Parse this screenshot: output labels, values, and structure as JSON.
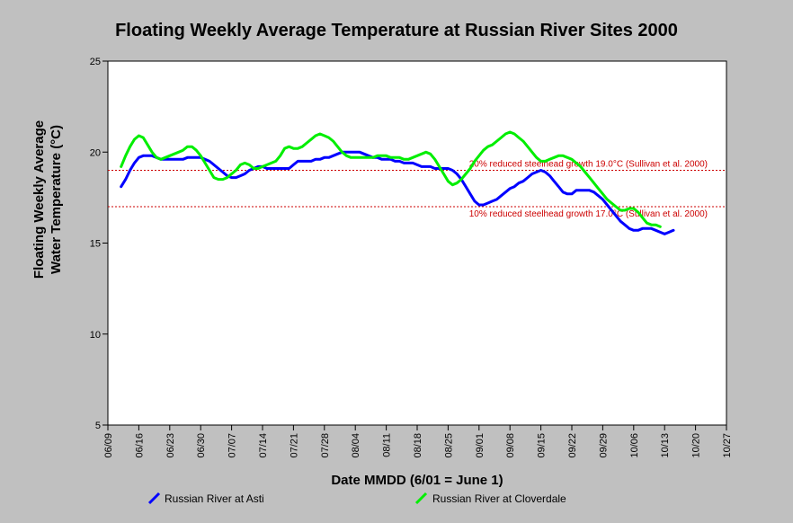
{
  "chart_data": {
    "type": "line",
    "title": "Floating Weekly Average Temperature at Russian River Sites 2000",
    "xlabel": "Date MMDD (6/01 = June 1)",
    "ylabel_lines": [
      "Floating Weekly Average",
      "Water Temperature (°C)"
    ],
    "xlim_days": [
      0,
      140
    ],
    "ylim": [
      5,
      25
    ],
    "y_ticks": [
      5,
      10,
      15,
      20,
      25
    ],
    "x_ticks": [
      {
        "day": 0,
        "label": "06/09"
      },
      {
        "day": 7,
        "label": "06/16"
      },
      {
        "day": 14,
        "label": "06/23"
      },
      {
        "day": 21,
        "label": "06/30"
      },
      {
        "day": 28,
        "label": "07/07"
      },
      {
        "day": 35,
        "label": "07/14"
      },
      {
        "day": 42,
        "label": "07/21"
      },
      {
        "day": 49,
        "label": "07/28"
      },
      {
        "day": 56,
        "label": "08/04"
      },
      {
        "day": 63,
        "label": "08/11"
      },
      {
        "day": 70,
        "label": "08/18"
      },
      {
        "day": 77,
        "label": "08/25"
      },
      {
        "day": 84,
        "label": "09/01"
      },
      {
        "day": 91,
        "label": "09/08"
      },
      {
        "day": 98,
        "label": "09/15"
      },
      {
        "day": 105,
        "label": "09/22"
      },
      {
        "day": 112,
        "label": "09/29"
      },
      {
        "day": 119,
        "label": "10/06"
      },
      {
        "day": 126,
        "label": "10/13"
      },
      {
        "day": 133,
        "label": "10/20"
      },
      {
        "day": 140,
        "label": "10/27"
      }
    ],
    "grid": false,
    "legend_position": "bottom",
    "reference_lines": [
      {
        "y": 19.0,
        "label": "20% reduced steelhead growth 19.0°C (Sullivan et al. 2000)",
        "color": "#cc0000"
      },
      {
        "y": 17.0,
        "label": "10% reduced steelhead growth 17.0°C (Sullivan et al. 2000)",
        "color": "#cc0000"
      }
    ],
    "series": [
      {
        "name": "Russian River at Asti",
        "color": "#0000ff",
        "points": [
          [
            3,
            18.1
          ],
          [
            4,
            18.5
          ],
          [
            5,
            19.0
          ],
          [
            6,
            19.4
          ],
          [
            7,
            19.7
          ],
          [
            8,
            19.8
          ],
          [
            9,
            19.8
          ],
          [
            10,
            19.8
          ],
          [
            11,
            19.7
          ],
          [
            12,
            19.6
          ],
          [
            13,
            19.6
          ],
          [
            14,
            19.6
          ],
          [
            15,
            19.6
          ],
          [
            16,
            19.6
          ],
          [
            17,
            19.6
          ],
          [
            18,
            19.7
          ],
          [
            19,
            19.7
          ],
          [
            20,
            19.7
          ],
          [
            21,
            19.7
          ],
          [
            22,
            19.6
          ],
          [
            23,
            19.5
          ],
          [
            24,
            19.3
          ],
          [
            25,
            19.1
          ],
          [
            26,
            18.9
          ],
          [
            27,
            18.7
          ],
          [
            28,
            18.6
          ],
          [
            29,
            18.6
          ],
          [
            30,
            18.7
          ],
          [
            31,
            18.8
          ],
          [
            32,
            19.0
          ],
          [
            33,
            19.1
          ],
          [
            34,
            19.2
          ],
          [
            35,
            19.2
          ],
          [
            36,
            19.1
          ],
          [
            37,
            19.1
          ],
          [
            38,
            19.1
          ],
          [
            39,
            19.1
          ],
          [
            40,
            19.1
          ],
          [
            41,
            19.1
          ],
          [
            42,
            19.3
          ],
          [
            43,
            19.5
          ],
          [
            44,
            19.5
          ],
          [
            45,
            19.5
          ],
          [
            46,
            19.5
          ],
          [
            47,
            19.6
          ],
          [
            48,
            19.6
          ],
          [
            49,
            19.7
          ],
          [
            50,
            19.7
          ],
          [
            51,
            19.8
          ],
          [
            52,
            19.9
          ],
          [
            53,
            20.0
          ],
          [
            54,
            20.0
          ],
          [
            55,
            20.0
          ],
          [
            56,
            20.0
          ],
          [
            57,
            20.0
          ],
          [
            58,
            19.9
          ],
          [
            59,
            19.8
          ],
          [
            60,
            19.7
          ],
          [
            61,
            19.7
          ],
          [
            62,
            19.6
          ],
          [
            63,
            19.6
          ],
          [
            64,
            19.6
          ],
          [
            65,
            19.5
          ],
          [
            66,
            19.5
          ],
          [
            67,
            19.4
          ],
          [
            68,
            19.4
          ],
          [
            69,
            19.4
          ],
          [
            70,
            19.3
          ],
          [
            71,
            19.2
          ],
          [
            72,
            19.2
          ],
          [
            73,
            19.2
          ],
          [
            74,
            19.1
          ],
          [
            75,
            19.1
          ],
          [
            76,
            19.1
          ],
          [
            77,
            19.1
          ],
          [
            78,
            19.0
          ],
          [
            79,
            18.8
          ],
          [
            80,
            18.5
          ],
          [
            81,
            18.1
          ],
          [
            82,
            17.7
          ],
          [
            83,
            17.3
          ],
          [
            84,
            17.1
          ],
          [
            85,
            17.1
          ],
          [
            86,
            17.2
          ],
          [
            87,
            17.3
          ],
          [
            88,
            17.4
          ],
          [
            89,
            17.6
          ],
          [
            90,
            17.8
          ],
          [
            91,
            18.0
          ],
          [
            92,
            18.1
          ],
          [
            93,
            18.3
          ],
          [
            94,
            18.4
          ],
          [
            95,
            18.6
          ],
          [
            96,
            18.8
          ],
          [
            97,
            18.9
          ],
          [
            98,
            19.0
          ],
          [
            99,
            18.9
          ],
          [
            100,
            18.7
          ],
          [
            101,
            18.4
          ],
          [
            102,
            18.1
          ],
          [
            103,
            17.8
          ],
          [
            104,
            17.7
          ],
          [
            105,
            17.7
          ],
          [
            106,
            17.9
          ],
          [
            107,
            17.9
          ],
          [
            108,
            17.9
          ],
          [
            109,
            17.9
          ],
          [
            110,
            17.8
          ],
          [
            111,
            17.6
          ],
          [
            112,
            17.4
          ],
          [
            113,
            17.1
          ],
          [
            114,
            16.8
          ],
          [
            115,
            16.5
          ],
          [
            116,
            16.2
          ],
          [
            117,
            16.0
          ],
          [
            118,
            15.8
          ],
          [
            119,
            15.7
          ],
          [
            120,
            15.7
          ],
          [
            121,
            15.8
          ],
          [
            122,
            15.8
          ],
          [
            123,
            15.8
          ],
          [
            124,
            15.7
          ],
          [
            125,
            15.6
          ],
          [
            126,
            15.5
          ],
          [
            127,
            15.6
          ],
          [
            128,
            15.7
          ]
        ]
      },
      {
        "name": "Russian River at Cloverdale",
        "color": "#00ee00",
        "points": [
          [
            3,
            19.2
          ],
          [
            4,
            19.8
          ],
          [
            5,
            20.3
          ],
          [
            6,
            20.7
          ],
          [
            7,
            20.9
          ],
          [
            8,
            20.8
          ],
          [
            9,
            20.4
          ],
          [
            10,
            20.0
          ],
          [
            11,
            19.7
          ],
          [
            12,
            19.6
          ],
          [
            13,
            19.7
          ],
          [
            14,
            19.8
          ],
          [
            15,
            19.9
          ],
          [
            16,
            20.0
          ],
          [
            17,
            20.1
          ],
          [
            18,
            20.3
          ],
          [
            19,
            20.3
          ],
          [
            20,
            20.1
          ],
          [
            21,
            19.8
          ],
          [
            22,
            19.4
          ],
          [
            23,
            19.0
          ],
          [
            24,
            18.6
          ],
          [
            25,
            18.5
          ],
          [
            26,
            18.5
          ],
          [
            27,
            18.6
          ],
          [
            28,
            18.8
          ],
          [
            29,
            19.0
          ],
          [
            30,
            19.3
          ],
          [
            31,
            19.4
          ],
          [
            32,
            19.3
          ],
          [
            33,
            19.1
          ],
          [
            34,
            19.1
          ],
          [
            35,
            19.2
          ],
          [
            36,
            19.3
          ],
          [
            37,
            19.4
          ],
          [
            38,
            19.5
          ],
          [
            39,
            19.8
          ],
          [
            40,
            20.2
          ],
          [
            41,
            20.3
          ],
          [
            42,
            20.2
          ],
          [
            43,
            20.2
          ],
          [
            44,
            20.3
          ],
          [
            45,
            20.5
          ],
          [
            46,
            20.7
          ],
          [
            47,
            20.9
          ],
          [
            48,
            21.0
          ],
          [
            49,
            20.9
          ],
          [
            50,
            20.8
          ],
          [
            51,
            20.6
          ],
          [
            52,
            20.3
          ],
          [
            53,
            20.0
          ],
          [
            54,
            19.8
          ],
          [
            55,
            19.7
          ],
          [
            56,
            19.7
          ],
          [
            57,
            19.7
          ],
          [
            58,
            19.7
          ],
          [
            59,
            19.7
          ],
          [
            60,
            19.7
          ],
          [
            61,
            19.8
          ],
          [
            62,
            19.8
          ],
          [
            63,
            19.8
          ],
          [
            64,
            19.7
          ],
          [
            65,
            19.7
          ],
          [
            66,
            19.7
          ],
          [
            67,
            19.6
          ],
          [
            68,
            19.6
          ],
          [
            69,
            19.7
          ],
          [
            70,
            19.8
          ],
          [
            71,
            19.9
          ],
          [
            72,
            20.0
          ],
          [
            73,
            19.9
          ],
          [
            74,
            19.6
          ],
          [
            75,
            19.2
          ],
          [
            76,
            18.8
          ],
          [
            77,
            18.4
          ],
          [
            78,
            18.2
          ],
          [
            79,
            18.3
          ],
          [
            80,
            18.5
          ],
          [
            81,
            18.8
          ],
          [
            82,
            19.1
          ],
          [
            83,
            19.5
          ],
          [
            84,
            19.8
          ],
          [
            85,
            20.1
          ],
          [
            86,
            20.3
          ],
          [
            87,
            20.4
          ],
          [
            88,
            20.6
          ],
          [
            89,
            20.8
          ],
          [
            90,
            21.0
          ],
          [
            91,
            21.1
          ],
          [
            92,
            21.0
          ],
          [
            93,
            20.8
          ],
          [
            94,
            20.6
          ],
          [
            95,
            20.3
          ],
          [
            96,
            20.0
          ],
          [
            97,
            19.7
          ],
          [
            98,
            19.5
          ],
          [
            99,
            19.5
          ],
          [
            100,
            19.6
          ],
          [
            101,
            19.7
          ],
          [
            102,
            19.8
          ],
          [
            103,
            19.8
          ],
          [
            104,
            19.7
          ],
          [
            105,
            19.6
          ],
          [
            106,
            19.4
          ],
          [
            107,
            19.2
          ],
          [
            108,
            18.9
          ],
          [
            109,
            18.6
          ],
          [
            110,
            18.3
          ],
          [
            111,
            18.0
          ],
          [
            112,
            17.7
          ],
          [
            113,
            17.4
          ],
          [
            114,
            17.2
          ],
          [
            115,
            17.0
          ],
          [
            116,
            16.8
          ],
          [
            117,
            16.8
          ],
          [
            118,
            16.9
          ],
          [
            119,
            16.9
          ],
          [
            120,
            16.7
          ],
          [
            121,
            16.4
          ],
          [
            122,
            16.1
          ],
          [
            123,
            16.0
          ],
          [
            124,
            16.0
          ],
          [
            125,
            15.9
          ]
        ]
      }
    ]
  }
}
